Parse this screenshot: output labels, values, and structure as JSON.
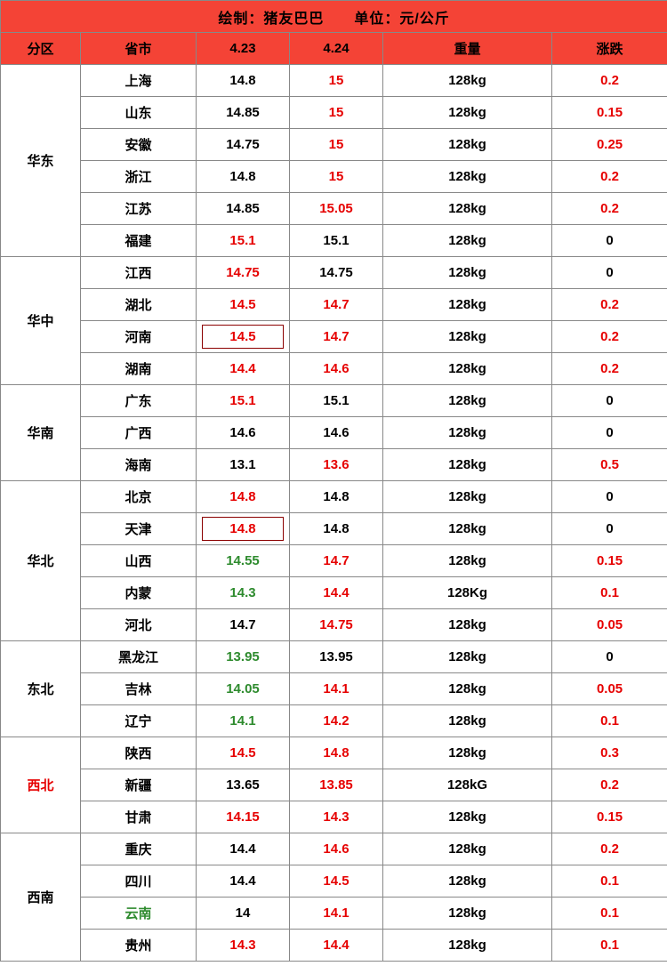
{
  "title": "绘制：猪友巴巴　　单位：元/公斤",
  "columns": {
    "region": "分区",
    "province": "省市",
    "d1": "4.23",
    "d2": "4.24",
    "weight": "重量",
    "change": "涨跌"
  },
  "colors": {
    "header_bg": "#f44336",
    "highlight_bg": "#ffff8d",
    "red": "#e60000",
    "green": "#2e8b2e",
    "black": "#000000",
    "border": "#888888"
  },
  "regions": [
    {
      "name": "华东",
      "name_color": "black",
      "rows": [
        {
          "prov": "上海",
          "pc": "black",
          "v1": "14.8",
          "c1": "black",
          "b1": false,
          "v2": "15",
          "c2": "red",
          "w": "128kg",
          "ch": "0.2",
          "cc": "red"
        },
        {
          "prov": "山东",
          "pc": "black",
          "v1": "14.85",
          "c1": "black",
          "b1": false,
          "v2": "15",
          "c2": "red",
          "w": "128kg",
          "ch": "0.15",
          "cc": "red"
        },
        {
          "prov": "安徽",
          "pc": "black",
          "v1": "14.75",
          "c1": "black",
          "b1": false,
          "v2": "15",
          "c2": "red",
          "w": "128kg",
          "ch": "0.25",
          "cc": "red"
        },
        {
          "prov": "浙江",
          "pc": "black",
          "v1": "14.8",
          "c1": "black",
          "b1": false,
          "v2": "15",
          "c2": "red",
          "w": "128kg",
          "ch": "0.2",
          "cc": "red"
        },
        {
          "prov": "江苏",
          "pc": "black",
          "v1": "14.85",
          "c1": "black",
          "b1": false,
          "v2": "15.05",
          "c2": "red",
          "w": "128kg",
          "ch": "0.2",
          "cc": "red"
        },
        {
          "prov": "福建",
          "pc": "black",
          "v1": "15.1",
          "c1": "red",
          "b1": false,
          "v2": "15.1",
          "c2": "black",
          "w": "128kg",
          "ch": "0",
          "cc": "black"
        }
      ]
    },
    {
      "name": "华中",
      "name_color": "black",
      "rows": [
        {
          "prov": "江西",
          "pc": "black",
          "v1": "14.75",
          "c1": "red",
          "b1": false,
          "v2": "14.75",
          "c2": "black",
          "w": "128kg",
          "ch": "0",
          "cc": "black"
        },
        {
          "prov": "湖北",
          "pc": "black",
          "v1": "14.5",
          "c1": "red",
          "b1": false,
          "v2": "14.7",
          "c2": "red",
          "w": "128kg",
          "ch": "0.2",
          "cc": "red"
        },
        {
          "prov": "河南",
          "pc": "black",
          "v1": "14.5",
          "c1": "red",
          "b1": true,
          "v2": "14.7",
          "c2": "red",
          "w": "128kg",
          "ch": "0.2",
          "cc": "red"
        },
        {
          "prov": "湖南",
          "pc": "black",
          "v1": "14.4",
          "c1": "red",
          "b1": false,
          "v2": "14.6",
          "c2": "red",
          "w": "128kg",
          "ch": "0.2",
          "cc": "red"
        }
      ]
    },
    {
      "name": "华南",
      "name_color": "black",
      "rows": [
        {
          "prov": "广东",
          "pc": "black",
          "v1": "15.1",
          "c1": "red",
          "b1": false,
          "v2": "15.1",
          "c2": "black",
          "w": "128kg",
          "ch": "0",
          "cc": "black"
        },
        {
          "prov": "广西",
          "pc": "black",
          "v1": "14.6",
          "c1": "black",
          "b1": false,
          "v2": "14.6",
          "c2": "black",
          "w": "128kg",
          "ch": "0",
          "cc": "black"
        },
        {
          "prov": "海南",
          "pc": "black",
          "v1": "13.1",
          "c1": "black",
          "b1": false,
          "v2": "13.6",
          "c2": "red",
          "w": "128kg",
          "ch": "0.5",
          "cc": "red"
        }
      ]
    },
    {
      "name": "华北",
      "name_color": "black",
      "rows": [
        {
          "prov": "北京",
          "pc": "black",
          "v1": "14.8",
          "c1": "red",
          "b1": false,
          "v2": "14.8",
          "c2": "black",
          "w": "128kg",
          "ch": "0",
          "cc": "black"
        },
        {
          "prov": "天津",
          "pc": "black",
          "v1": "14.8",
          "c1": "red",
          "b1": true,
          "v2": "14.8",
          "c2": "black",
          "w": "128kg",
          "ch": "0",
          "cc": "black"
        },
        {
          "prov": "山西",
          "pc": "black",
          "v1": "14.55",
          "c1": "green",
          "b1": false,
          "v2": "14.7",
          "c2": "red",
          "w": "128kg",
          "ch": "0.15",
          "cc": "red"
        },
        {
          "prov": "内蒙",
          "pc": "black",
          "v1": "14.3",
          "c1": "green",
          "b1": false,
          "v2": "14.4",
          "c2": "red",
          "w": "128Kg",
          "ch": "0.1",
          "cc": "red"
        },
        {
          "prov": "河北",
          "pc": "black",
          "v1": "14.7",
          "c1": "black",
          "b1": false,
          "v2": "14.75",
          "c2": "red",
          "w": "128kg",
          "ch": "0.05",
          "cc": "red"
        }
      ]
    },
    {
      "name": "东北",
      "name_color": "black",
      "rows": [
        {
          "prov": "黑龙江",
          "pc": "black",
          "v1": "13.95",
          "c1": "green",
          "b1": false,
          "v2": "13.95",
          "c2": "black",
          "w": "128kg",
          "ch": "0",
          "cc": "black"
        },
        {
          "prov": "吉林",
          "pc": "black",
          "v1": "14.05",
          "c1": "green",
          "b1": false,
          "v2": "14.1",
          "c2": "red",
          "w": "128kg",
          "ch": "0.05",
          "cc": "red"
        },
        {
          "prov": "辽宁",
          "pc": "black",
          "v1": "14.1",
          "c1": "green",
          "b1": false,
          "v2": "14.2",
          "c2": "red",
          "w": "128kg",
          "ch": "0.1",
          "cc": "red"
        }
      ]
    },
    {
      "name": "西北",
      "name_color": "red",
      "rows": [
        {
          "prov": "陕西",
          "pc": "black",
          "v1": "14.5",
          "c1": "red",
          "b1": false,
          "v2": "14.8",
          "c2": "red",
          "w": "128kg",
          "ch": "0.3",
          "cc": "red"
        },
        {
          "prov": "新疆",
          "pc": "black",
          "v1": "13.65",
          "c1": "black",
          "b1": false,
          "v2": "13.85",
          "c2": "red",
          "w": "128kG",
          "ch": "0.2",
          "cc": "red"
        },
        {
          "prov": "甘肃",
          "pc": "black",
          "v1": "14.15",
          "c1": "red",
          "b1": false,
          "v2": "14.3",
          "c2": "red",
          "w": "128kg",
          "ch": "0.15",
          "cc": "red"
        }
      ]
    },
    {
      "name": "西南",
      "name_color": "black",
      "rows": [
        {
          "prov": "重庆",
          "pc": "black",
          "v1": "14.4",
          "c1": "black",
          "b1": false,
          "v2": "14.6",
          "c2": "red",
          "w": "128kg",
          "ch": "0.2",
          "cc": "red"
        },
        {
          "prov": "四川",
          "pc": "black",
          "v1": "14.4",
          "c1": "black",
          "b1": false,
          "v2": "14.5",
          "c2": "red",
          "w": "128kg",
          "ch": "0.1",
          "cc": "red"
        },
        {
          "prov": "云南",
          "pc": "green",
          "v1": "14",
          "c1": "black",
          "b1": false,
          "v2": "14.1",
          "c2": "red",
          "w": "128kg",
          "ch": "0.1",
          "cc": "red"
        },
        {
          "prov": "贵州",
          "pc": "black",
          "v1": "14.3",
          "c1": "red",
          "b1": false,
          "v2": "14.4",
          "c2": "red",
          "w": "128kg",
          "ch": "0.1",
          "cc": "red"
        }
      ]
    }
  ]
}
